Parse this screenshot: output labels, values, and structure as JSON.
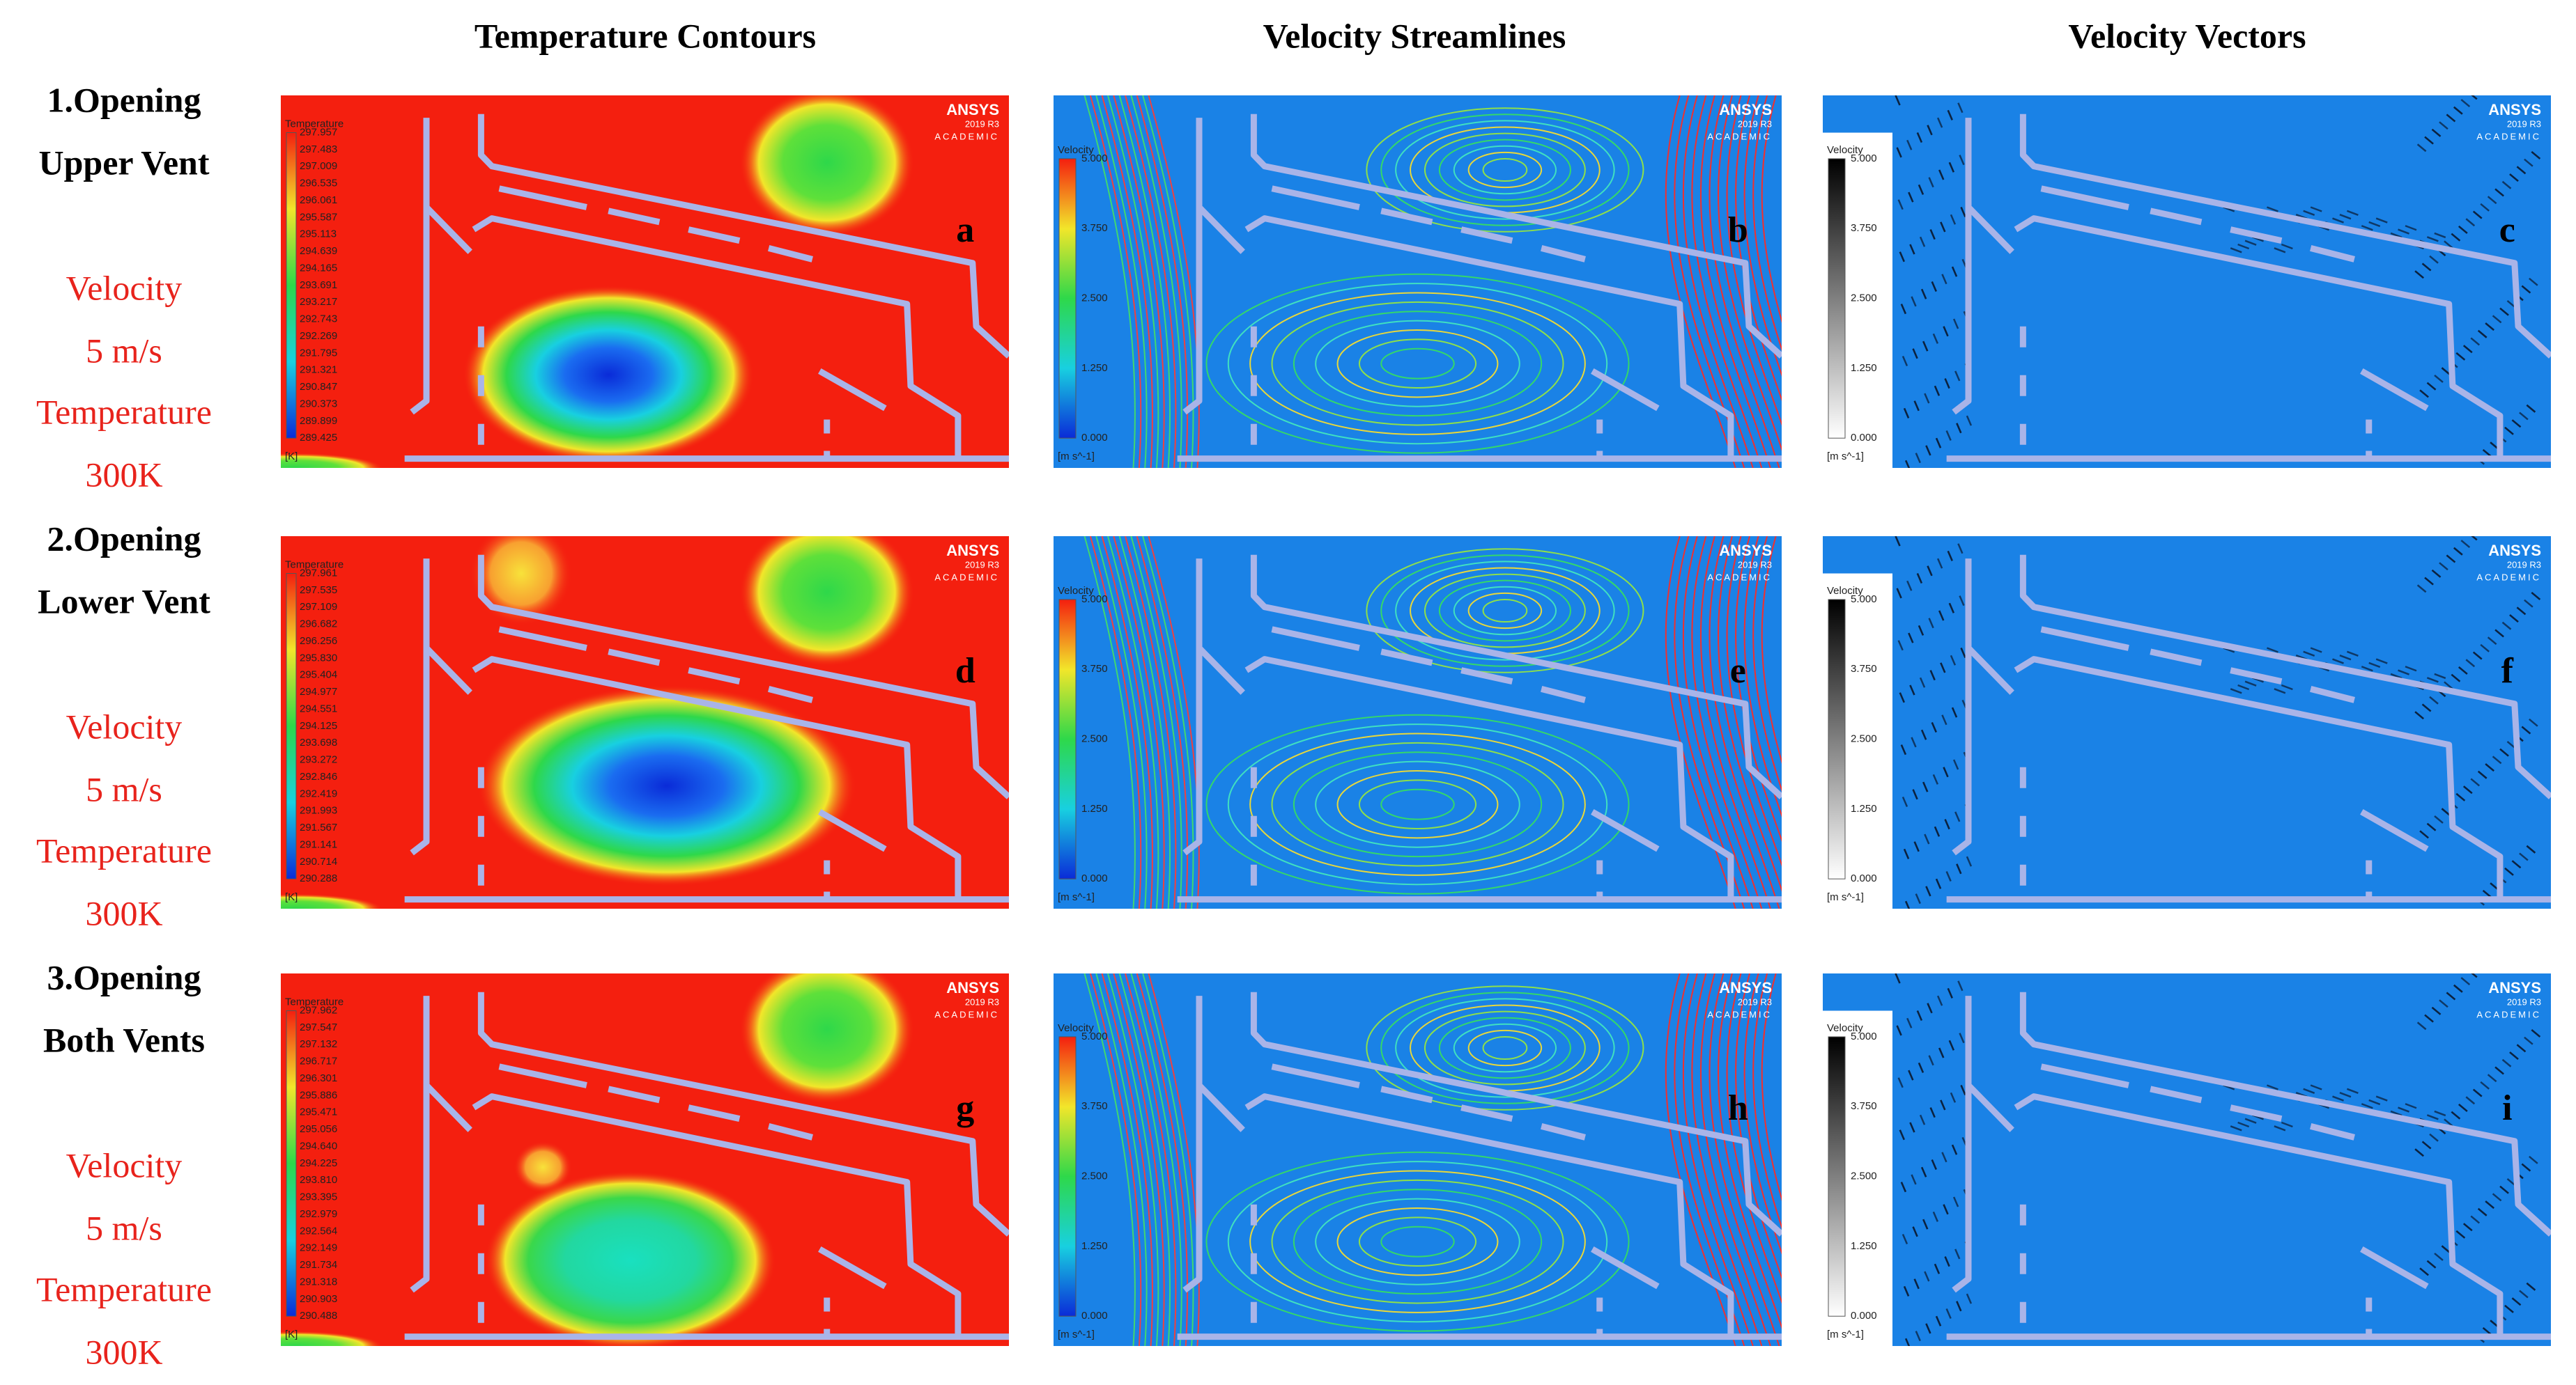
{
  "column_headers": [
    "Temperature Contours",
    "Velocity Streamlines",
    "Velocity Vectors"
  ],
  "logo": {
    "name": "ANSYS",
    "version": "2019 R3",
    "edition": "ACADEMIC"
  },
  "rows": [
    {
      "label_lines": [
        "1.Opening",
        "Upper Vent"
      ],
      "conditions": [
        "Velocity",
        "5 m/s",
        "Temperature",
        "300K"
      ],
      "panels": [
        {
          "letter": "a",
          "legend_title": "Temperature",
          "unit": "[K]",
          "legend_ticks": [
            "297.957",
            "297.483",
            "297.009",
            "296.535",
            "296.061",
            "295.587",
            "295.113",
            "294.639",
            "294.165",
            "293.691",
            "293.217",
            "292.743",
            "292.269",
            "291.795",
            "291.321",
            "290.847",
            "290.373",
            "289.899",
            "289.425"
          ]
        },
        {
          "letter": "b",
          "legend_title": "Velocity",
          "unit": "[m s^-1]",
          "legend_ticks": [
            "5.000",
            "3.750",
            "2.500",
            "1.250",
            "0.000"
          ]
        },
        {
          "letter": "c",
          "legend_title": "Velocity",
          "unit": "[m s^-1]",
          "legend_ticks": [
            "5.000",
            "3.750",
            "2.500",
            "1.250",
            "0.000"
          ]
        }
      ]
    },
    {
      "label_lines": [
        "2.Opening",
        "Lower Vent"
      ],
      "conditions": [
        "Velocity",
        "5 m/s",
        "Temperature",
        "300K"
      ],
      "panels": [
        {
          "letter": "d",
          "legend_title": "Temperature",
          "unit": "[K]",
          "legend_ticks": [
            "297.961",
            "297.535",
            "297.109",
            "296.682",
            "296.256",
            "295.830",
            "295.404",
            "294.977",
            "294.551",
            "294.125",
            "293.698",
            "293.272",
            "292.846",
            "292.419",
            "291.993",
            "291.567",
            "291.141",
            "290.714",
            "290.288"
          ]
        },
        {
          "letter": "e",
          "legend_title": "Velocity",
          "unit": "[m s^-1]",
          "legend_ticks": [
            "5.000",
            "3.750",
            "2.500",
            "1.250",
            "0.000"
          ]
        },
        {
          "letter": "f",
          "legend_title": "Velocity",
          "unit": "[m s^-1]",
          "legend_ticks": [
            "5.000",
            "3.750",
            "2.500",
            "1.250",
            "0.000"
          ]
        }
      ]
    },
    {
      "label_lines": [
        "3.Opening",
        "Both Vents"
      ],
      "conditions": [
        "Velocity",
        "5 m/s",
        "Temperature",
        "300K"
      ],
      "panels": [
        {
          "letter": "g",
          "legend_title": "Temperature",
          "unit": "[K]",
          "legend_ticks": [
            "297.962",
            "297.547",
            "297.132",
            "296.717",
            "296.301",
            "295.886",
            "295.471",
            "295.056",
            "294.640",
            "294.225",
            "293.810",
            "293.395",
            "292.979",
            "292.564",
            "292.149",
            "291.734",
            "291.318",
            "290.903",
            "290.488"
          ]
        },
        {
          "letter": "h",
          "legend_title": "Velocity",
          "unit": "[m s^-1]",
          "legend_ticks": [
            "5.000",
            "3.750",
            "2.500",
            "1.250",
            "0.000"
          ]
        },
        {
          "letter": "i",
          "legend_title": "Velocity",
          "unit": "[m s^-1]",
          "legend_ticks": [
            "5.000",
            "3.750",
            "2.500",
            "1.250",
            "0.000"
          ]
        }
      ]
    }
  ]
}
